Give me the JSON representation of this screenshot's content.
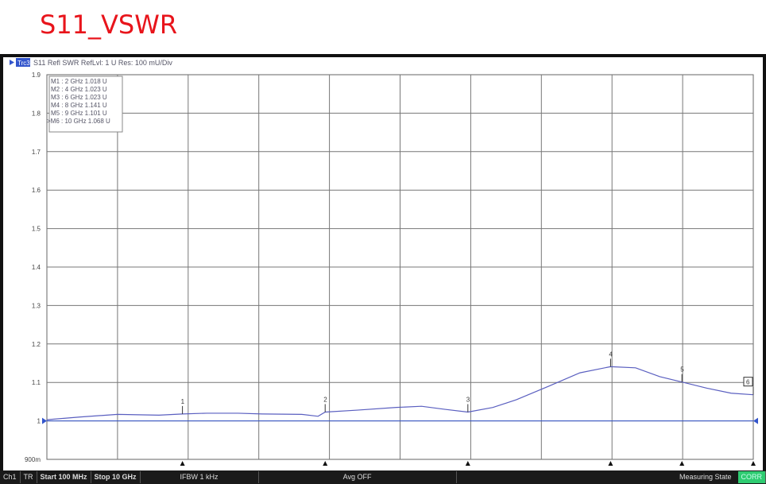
{
  "title": "S11_VSWR",
  "trace_header": {
    "badge": "Trc3",
    "text": "S11 Refl SWR RefLvl: 1  U Res: 100 mU/Div",
    "badge_color": "#3355cc"
  },
  "markers_table": [
    "M1 :  2 GHz  1.018  U",
    "M2 :  4 GHz  1.023  U",
    "M3 :  6 GHz  1.023  U",
    "M4 :  8 GHz  1.141  U",
    "M5 :  9 GHz  1.101  U",
    ">M6 :  10 GHz  1.068  U"
  ],
  "status": {
    "ch": "Ch1",
    "tr": "TR",
    "start": "Start 100 MHz",
    "stop": "Stop 10 GHz",
    "ifbw": "IFBW 1 kHz",
    "avg": "Avg OFF",
    "state": "Measuring State",
    "corr": "CORR"
  },
  "chart_data": {
    "type": "line",
    "xlim": [
      0.1,
      10
    ],
    "xunit": "GHz",
    "ylim": [
      0.9,
      1.9
    ],
    "ytick_labels": [
      "900m",
      "1",
      "1.1",
      "1.2",
      "1.3",
      "1.4",
      "1.5",
      "1.6",
      "1.7",
      "1.8",
      "1.9"
    ],
    "grid": true,
    "trace_color": "#5a5fc0",
    "series": [
      {
        "x": [
          0.1,
          0.557,
          1.09,
          1.67,
          2.0,
          2.34,
          2.78,
          3.12,
          3.67,
          3.9,
          4.0,
          4.45,
          5.0,
          5.35,
          5.68,
          6.0,
          6.35,
          6.68,
          7.13,
          7.57,
          8.0,
          8.35,
          8.69,
          9.0,
          9.35,
          9.69,
          10.0
        ],
        "y": [
          1.003,
          1.01,
          1.017,
          1.015,
          1.018,
          1.02,
          1.02,
          1.018,
          1.017,
          1.012,
          1.023,
          1.028,
          1.035,
          1.038,
          1.03,
          1.023,
          1.035,
          1.055,
          1.09,
          1.125,
          1.141,
          1.138,
          1.115,
          1.101,
          1.085,
          1.072,
          1.068
        ]
      }
    ],
    "markers": [
      {
        "label": "1",
        "x": 2,
        "y": 1.018
      },
      {
        "label": "2",
        "x": 4,
        "y": 1.023
      },
      {
        "label": "3",
        "x": 6,
        "y": 1.023
      },
      {
        "label": "4",
        "x": 8,
        "y": 1.141
      },
      {
        "label": "5",
        "x": 9,
        "y": 1.101
      },
      {
        "label": "6",
        "x": 10,
        "y": 1.068
      }
    ]
  }
}
